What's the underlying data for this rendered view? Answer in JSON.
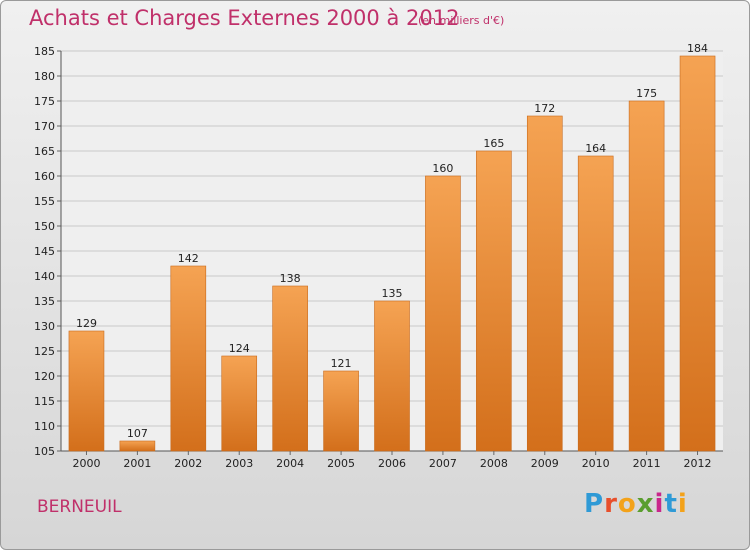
{
  "header": {
    "title": "Achats et Charges Externes 2000 à 2012",
    "unit": "(en milliers d'€)"
  },
  "footer": {
    "commune": "BERNEUIL",
    "logo_letters": [
      "P",
      "r",
      "o",
      "x",
      "i",
      "t",
      "i"
    ],
    "logo_colors": [
      "#2f9ad6",
      "#e84f2b",
      "#f3a21a",
      "#5a9e2f",
      "#c9278b",
      "#2f9ad6",
      "#f3a21a"
    ]
  },
  "chart_data": {
    "type": "bar",
    "title": "Achats et Charges Externes 2000 à 2012",
    "categories": [
      "2000",
      "2001",
      "2002",
      "2003",
      "2004",
      "2005",
      "2006",
      "2007",
      "2008",
      "2009",
      "2010",
      "2011",
      "2012"
    ],
    "values": [
      129,
      107,
      142,
      124,
      138,
      121,
      135,
      160,
      165,
      172,
      164,
      175,
      184
    ],
    "ylim": [
      105,
      185
    ],
    "yticks": [
      105,
      110,
      115,
      120,
      125,
      130,
      135,
      140,
      145,
      150,
      155,
      160,
      165,
      170,
      175,
      180,
      185
    ],
    "grid": true,
    "bar_color_top": "#f5a353",
    "bar_color_bottom": "#d36f1b"
  }
}
